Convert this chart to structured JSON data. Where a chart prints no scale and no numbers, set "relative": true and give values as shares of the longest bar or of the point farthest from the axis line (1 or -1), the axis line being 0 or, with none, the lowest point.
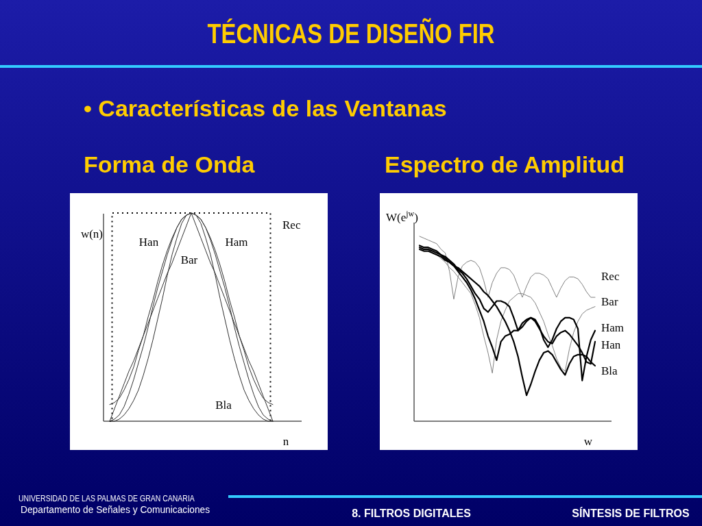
{
  "chart_data": [
    {
      "type": "line",
      "title": "Forma de Onda",
      "xlabel": "n",
      "ylabel": "w(n)",
      "relative": true,
      "annotations": [
        "TÉCNICAS DE DISEÑO FIR",
        "• Características de las Ventanas"
      ],
      "categories": [
        null,
        null,
        null,
        null,
        null,
        null,
        null,
        null,
        null,
        null,
        null,
        null,
        null,
        null,
        null,
        null,
        null,
        null,
        null,
        null,
        null,
        null,
        null,
        null,
        null,
        null,
        null,
        null,
        null,
        null,
        null,
        null,
        null,
        null,
        null
      ],
      "series": [
        {
          "name": "Rec",
          "type": "step",
          "line_style": "dotted",
          "color": "#000000",
          "values": [
            0,
            1,
            1,
            1,
            1,
            1,
            1,
            1,
            1,
            1,
            1,
            1,
            1,
            1,
            1,
            1,
            1,
            1,
            1,
            1,
            1,
            1,
            1,
            1,
            1,
            1,
            1,
            1,
            1,
            1,
            1,
            1,
            1,
            1,
            0
          ]
        },
        {
          "name": "Han",
          "color": "#303030",
          "values": [
            0,
            0.01,
            0.03,
            0.07,
            0.13,
            0.2,
            0.28,
            0.36,
            0.45,
            0.55,
            0.64,
            0.72,
            0.8,
            0.87,
            0.93,
            0.97,
            0.99,
            1.0,
            0.99,
            0.97,
            0.93,
            0.87,
            0.8,
            0.72,
            0.64,
            0.55,
            0.45,
            0.36,
            0.28,
            0.2,
            0.13,
            0.07,
            0.03,
            0.01,
            0
          ]
        },
        {
          "name": "Ham",
          "color": "#303030",
          "values": [
            0.08,
            0.09,
            0.11,
            0.15,
            0.2,
            0.26,
            0.34,
            0.41,
            0.5,
            0.58,
            0.67,
            0.75,
            0.82,
            0.88,
            0.93,
            0.97,
            0.99,
            1.0,
            0.99,
            0.97,
            0.93,
            0.88,
            0.82,
            0.75,
            0.67,
            0.58,
            0.5,
            0.41,
            0.34,
            0.26,
            0.2,
            0.15,
            0.11,
            0.09,
            0.08
          ]
        },
        {
          "name": "Bar",
          "color": "#303030",
          "values": [
            0,
            0.06,
            0.12,
            0.18,
            0.24,
            0.29,
            0.35,
            0.41,
            0.47,
            0.53,
            0.59,
            0.65,
            0.71,
            0.76,
            0.82,
            0.88,
            0.94,
            1.0,
            0.94,
            0.88,
            0.82,
            0.76,
            0.71,
            0.65,
            0.59,
            0.53,
            0.47,
            0.41,
            0.35,
            0.29,
            0.24,
            0.18,
            0.12,
            0.06,
            0
          ]
        },
        {
          "name": "Bla",
          "color": "#303030",
          "values": [
            0,
            0.0,
            0.01,
            0.03,
            0.06,
            0.1,
            0.15,
            0.22,
            0.3,
            0.39,
            0.49,
            0.59,
            0.7,
            0.8,
            0.88,
            0.95,
            0.99,
            1.0,
            0.99,
            0.95,
            0.88,
            0.8,
            0.7,
            0.59,
            0.49,
            0.39,
            0.3,
            0.22,
            0.15,
            0.1,
            0.06,
            0.03,
            0.01,
            0.0,
            0
          ]
        }
      ]
    },
    {
      "type": "line",
      "title": "Espectro de Amplitud",
      "xlabel": "w",
      "ylabel": "W(e$^{jw}$)",
      "relative": true,
      "annotations": [
        "UNIVERSIDAD DE LAS PALMAS DE GRAN CANARIA",
        "Departamento de Señales y Comunicaciones",
        "8. FILTROS DIGITALES",
        "SÍNTESIS DE FILTROS"
      ],
      "categories": [
        null,
        null,
        null,
        null,
        null,
        null,
        null,
        null,
        null,
        null,
        null,
        null,
        null,
        null,
        null,
        null,
        null,
        null,
        null,
        null,
        null,
        null,
        null,
        null,
        null,
        null,
        null,
        null,
        null,
        null,
        null,
        null,
        null,
        null,
        null,
        null,
        null,
        null,
        null,
        null,
        null,
        null
      ],
      "series": [
        {
          "name": "Rec",
          "color": "#808080",
          "values": [
            1.0,
            0.99,
            0.98,
            0.97,
            0.96,
            0.93,
            0.91,
            0.81,
            0.66,
            0.78,
            0.84,
            0.86,
            0.87,
            0.86,
            0.83,
            0.76,
            0.67,
            0.75,
            0.8,
            0.83,
            0.83,
            0.82,
            0.79,
            0.73,
            0.67,
            0.73,
            0.78,
            0.8,
            0.8,
            0.79,
            0.77,
            0.72,
            0.67,
            0.72,
            0.76,
            0.78,
            0.78,
            0.77,
            0.74,
            0.7,
            0.67,
            0.67
          ]
        },
        {
          "name": "Bar",
          "color": "#808080",
          "values": [
            0.94,
            0.93,
            0.93,
            0.91,
            0.9,
            0.88,
            0.86,
            0.83,
            0.81,
            0.78,
            0.75,
            0.72,
            0.69,
            0.63,
            0.56,
            0.46,
            0.37,
            0.26,
            0.44,
            0.54,
            0.6,
            0.65,
            0.67,
            0.69,
            0.69,
            0.68,
            0.67,
            0.64,
            0.59,
            0.54,
            0.47,
            0.41,
            0.34,
            0.29,
            0.27,
            0.39,
            0.48,
            0.54,
            0.58,
            0.6,
            0.61,
            0.62
          ]
        },
        {
          "name": "Ham",
          "color": "#000000",
          "values": [
            0.95,
            0.94,
            0.94,
            0.93,
            0.92,
            0.9,
            0.89,
            0.87,
            0.85,
            0.82,
            0.8,
            0.77,
            0.73,
            0.69,
            0.66,
            0.61,
            0.59,
            0.62,
            0.65,
            0.65,
            0.64,
            0.62,
            0.56,
            0.49,
            0.51,
            0.54,
            0.56,
            0.55,
            0.51,
            0.44,
            0.4,
            0.44,
            0.5,
            0.54,
            0.56,
            0.56,
            0.55,
            0.5,
            0.22,
            0.35,
            0.44,
            0.49
          ]
        },
        {
          "name": "Han",
          "color": "#000000",
          "values": [
            0.94,
            0.93,
            0.93,
            0.92,
            0.91,
            0.9,
            0.88,
            0.86,
            0.84,
            0.81,
            0.78,
            0.75,
            0.71,
            0.66,
            0.6,
            0.54,
            0.46,
            0.4,
            0.33,
            0.43,
            0.46,
            0.47,
            0.49,
            0.49,
            0.53,
            0.55,
            0.56,
            0.54,
            0.5,
            0.46,
            0.43,
            0.42,
            0.46,
            0.48,
            0.49,
            0.47,
            0.44,
            0.41,
            0.37,
            0.32,
            0.31,
            0.43
          ]
        },
        {
          "name": "Bla",
          "color": "#000000",
          "values": [
            0.93,
            0.92,
            0.92,
            0.91,
            0.9,
            0.89,
            0.87,
            0.86,
            0.84,
            0.83,
            0.81,
            0.79,
            0.77,
            0.75,
            0.73,
            0.7,
            0.68,
            0.65,
            0.62,
            0.58,
            0.54,
            0.49,
            0.43,
            0.35,
            0.24,
            0.14,
            0.2,
            0.27,
            0.33,
            0.37,
            0.38,
            0.36,
            0.32,
            0.28,
            0.25,
            0.31,
            0.35,
            0.36,
            0.36,
            0.35,
            0.32,
            0.3
          ]
        }
      ]
    }
  ]
}
